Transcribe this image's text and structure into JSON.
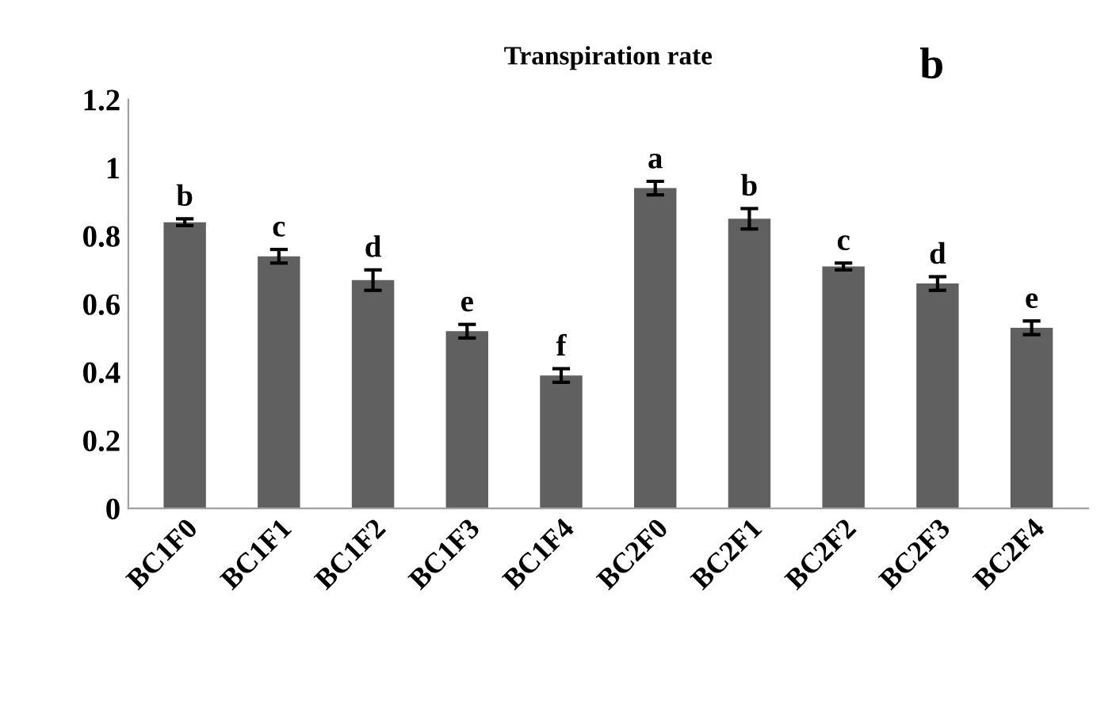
{
  "chart_data": {
    "type": "bar",
    "title": "Transpiration rate",
    "categories": [
      "BC1F0",
      "BC1F1",
      "BC1F2",
      "BC1F3",
      "BC1F4",
      "BC2F0",
      "BC2F1",
      "BC2F2",
      "BC2F3",
      "BC2F4"
    ],
    "values": [
      0.84,
      0.74,
      0.67,
      0.52,
      0.39,
      0.94,
      0.85,
      0.71,
      0.66,
      0.53
    ],
    "errors": [
      0.01,
      0.02,
      0.03,
      0.02,
      0.02,
      0.02,
      0.03,
      0.01,
      0.02,
      0.02
    ],
    "color": "#606060",
    "ylim": [
      0,
      1.2
    ],
    "yticks": [
      0,
      0.2,
      0.4,
      0.6,
      0.8,
      {
        "value": 1,
        "label": "1"
      },
      1.2
    ],
    "grid": false,
    "legend": false,
    "annotations": [
      {
        "text": "b",
        "x": "BC1F0",
        "y": 0.85
      },
      {
        "text": "c",
        "x": "BC1F1",
        "y": 0.76
      },
      {
        "text": "d",
        "x": "BC1F2",
        "y": 0.7
      },
      {
        "text": "e",
        "x": "BC1F3",
        "y": 0.54
      },
      {
        "text": "f",
        "x": "BC1F4",
        "y": 0.41
      },
      {
        "text": "a",
        "x": "BC2F0",
        "y": 0.96
      },
      {
        "text": "b",
        "x": "BC2F1",
        "y": 0.88
      },
      {
        "text": "c",
        "x": "BC2F2",
        "y": 0.72
      },
      {
        "text": "d",
        "x": "BC2F3",
        "y": 0.68
      },
      {
        "text": "e",
        "x": "BC2F4",
        "y": 0.55
      },
      "b"
    ]
  }
}
